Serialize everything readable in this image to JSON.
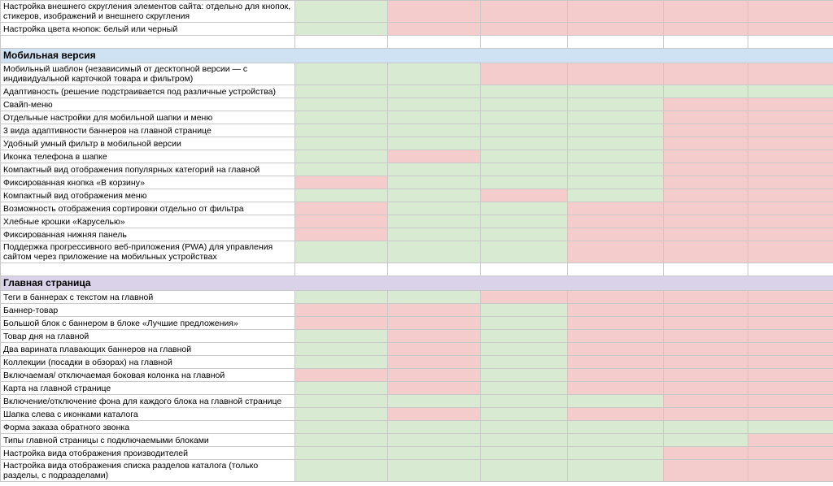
{
  "table": {
    "rows": [
      {
        "label": "Настройка внешнего скругления элементов сайта: отдельно для кнопок, стикеров, изображений и внешнего скругления",
        "cells": [
          "#d9ead3",
          "#f4cccc",
          "#f4cccc",
          "#f4cccc",
          "#f4cccc",
          "#f4cccc"
        ]
      },
      {
        "label": "Настройка цвета кнопок: белый или черный",
        "cells": [
          "#d9ead3",
          "#f4cccc",
          "#f4cccc",
          "#f4cccc",
          "#f4cccc",
          "#f4cccc"
        ]
      },
      {
        "cells": [
          "#ffffff",
          "#ffffff",
          "#ffffff",
          "#ffffff",
          "#ffffff",
          "#ffffff"
        ]
      },
      {
        "section": "Мобильная версия",
        "color": "#cfe2f3"
      },
      {
        "label": "Мобильный шаблон (независимый от десктопной версии — с индивидуальной карточкой товара и фильтром)",
        "cells": [
          "#d9ead3",
          "#d9ead3",
          "#f4cccc",
          "#f4cccc",
          "#f4cccc",
          "#f4cccc"
        ]
      },
      {
        "label": "Адаптивность (решение подстраивается под различные устройства)",
        "cells": [
          "#d9ead3",
          "#d9ead3",
          "#d9ead3",
          "#d9ead3",
          "#d9ead3",
          "#d9ead3"
        ]
      },
      {
        "label": "Свайп-меню",
        "cells": [
          "#d9ead3",
          "#d9ead3",
          "#d9ead3",
          "#d9ead3",
          "#f4cccc",
          "#f4cccc"
        ]
      },
      {
        "label": "Отдельные настройки для мобильной шапки и меню",
        "cells": [
          "#d9ead3",
          "#d9ead3",
          "#d9ead3",
          "#d9ead3",
          "#f4cccc",
          "#f4cccc"
        ]
      },
      {
        "label": "3 вида адаптивности баннеров на главной странице",
        "cells": [
          "#d9ead3",
          "#d9ead3",
          "#d9ead3",
          "#d9ead3",
          "#f4cccc",
          "#f4cccc"
        ]
      },
      {
        "label": "Удобный умный фильтр в мобильной версии",
        "cells": [
          "#d9ead3",
          "#d9ead3",
          "#d9ead3",
          "#d9ead3",
          "#f4cccc",
          "#f4cccc"
        ]
      },
      {
        "label": "Иконка телефона в шапке",
        "cells": [
          "#d9ead3",
          "#f4cccc",
          "#d9ead3",
          "#d9ead3",
          "#f4cccc",
          "#f4cccc"
        ]
      },
      {
        "label": "Компактный вид отображения популярных категорий на главной",
        "cells": [
          "#d9ead3",
          "#d9ead3",
          "#d9ead3",
          "#d9ead3",
          "#f4cccc",
          "#f4cccc"
        ]
      },
      {
        "label": "Фиксированная кнопка «В корзину»",
        "cells": [
          "#f4cccc",
          "#d9ead3",
          "#d9ead3",
          "#d9ead3",
          "#f4cccc",
          "#f4cccc"
        ]
      },
      {
        "label": "Компактный вид отображения меню",
        "cells": [
          "#d9ead3",
          "#d9ead3",
          "#f4cccc",
          "#d9ead3",
          "#f4cccc",
          "#f4cccc"
        ]
      },
      {
        "label": "Возможность отображения сортировки отдельно от фильтра",
        "cells": [
          "#f4cccc",
          "#d9ead3",
          "#d9ead3",
          "#f4cccc",
          "#f4cccc",
          "#f4cccc"
        ]
      },
      {
        "label": "Хлебные крошки «Каруселью»",
        "cells": [
          "#f4cccc",
          "#d9ead3",
          "#d9ead3",
          "#f4cccc",
          "#f4cccc",
          "#f4cccc"
        ]
      },
      {
        "label": "Фиксированная нижняя панель",
        "cells": [
          "#f4cccc",
          "#d9ead3",
          "#d9ead3",
          "#f4cccc",
          "#f4cccc",
          "#f4cccc"
        ]
      },
      {
        "label": "Поддержка прогрессивного веб-приложения (PWA) для управления сайтом через приложение на мобильных устройствах",
        "cells": [
          "#d9ead3",
          "#d9ead3",
          "#d9ead3",
          "#f4cccc",
          "#f4cccc",
          "#f4cccc"
        ]
      },
      {
        "cells": [
          "#ffffff",
          "#ffffff",
          "#ffffff",
          "#ffffff",
          "#ffffff",
          "#ffffff"
        ]
      },
      {
        "section": "Главная страница",
        "color": "#d9d2e9"
      },
      {
        "label": "Теги в баннерах с текстом на главной",
        "cells": [
          "#d9ead3",
          "#d9ead3",
          "#f4cccc",
          "#f4cccc",
          "#f4cccc",
          "#f4cccc"
        ]
      },
      {
        "label": "Баннер-товар",
        "cells": [
          "#f4cccc",
          "#f4cccc",
          "#d9ead3",
          "#f4cccc",
          "#f4cccc",
          "#f4cccc"
        ]
      },
      {
        "label": "Большой блок с баннером в блоке «Лучшие предложения»",
        "cells": [
          "#f4cccc",
          "#f4cccc",
          "#d9ead3",
          "#f4cccc",
          "#f4cccc",
          "#f4cccc"
        ]
      },
      {
        "label": "Товар дня на главной",
        "cells": [
          "#d9ead3",
          "#f4cccc",
          "#d9ead3",
          "#f4cccc",
          "#f4cccc",
          "#f4cccc"
        ]
      },
      {
        "label": "Два варината плавающих баннеров на главной",
        "cells": [
          "#d9ead3",
          "#f4cccc",
          "#d9ead3",
          "#f4cccc",
          "#f4cccc",
          "#f4cccc"
        ]
      },
      {
        "label": "Коллекции (посадки в обзорах) на главной",
        "cells": [
          "#d9ead3",
          "#f4cccc",
          "#d9ead3",
          "#f4cccc",
          "#f4cccc",
          "#f4cccc"
        ]
      },
      {
        "label": "Включаемая/ отключаемая боковая колонка на главной",
        "cells": [
          "#f4cccc",
          "#f4cccc",
          "#d9ead3",
          "#f4cccc",
          "#f4cccc",
          "#f4cccc"
        ]
      },
      {
        "label": "Карта на главной странице",
        "cells": [
          "#d9ead3",
          "#f4cccc",
          "#d9ead3",
          "#f4cccc",
          "#f4cccc",
          "#f4cccc"
        ]
      },
      {
        "label": "Включение/отключение фона для каждого блока на главной странице",
        "cells": [
          "#d9ead3",
          "#d9ead3",
          "#d9ead3",
          "#d9ead3",
          "#f4cccc",
          "#f4cccc"
        ]
      },
      {
        "label": "Шапка слева с иконками каталога",
        "cells": [
          "#d9ead3",
          "#f4cccc",
          "#d9ead3",
          "#f4cccc",
          "#f4cccc",
          "#f4cccc"
        ]
      },
      {
        "label": "Форма заказа обратного звонка",
        "cells": [
          "#d9ead3",
          "#d9ead3",
          "#d9ead3",
          "#d9ead3",
          "#d9ead3",
          "#d9ead3"
        ]
      },
      {
        "label": "Типы главной страницы с подключаемыми блоками",
        "cells": [
          "#d9ead3",
          "#d9ead3",
          "#d9ead3",
          "#d9ead3",
          "#d9ead3",
          "#f4cccc"
        ]
      },
      {
        "label": "Настройка вида отображения производителей",
        "cells": [
          "#d9ead3",
          "#d9ead3",
          "#d9ead3",
          "#d9ead3",
          "#f4cccc",
          "#f4cccc"
        ]
      },
      {
        "label": "Настройка вида отображения списка разделов каталога (только разделы, с подразделами)",
        "cells": [
          "#d9ead3",
          "#d9ead3",
          "#d9ead3",
          "#d9ead3",
          "#f4cccc",
          "#f4cccc"
        ]
      }
    ]
  }
}
